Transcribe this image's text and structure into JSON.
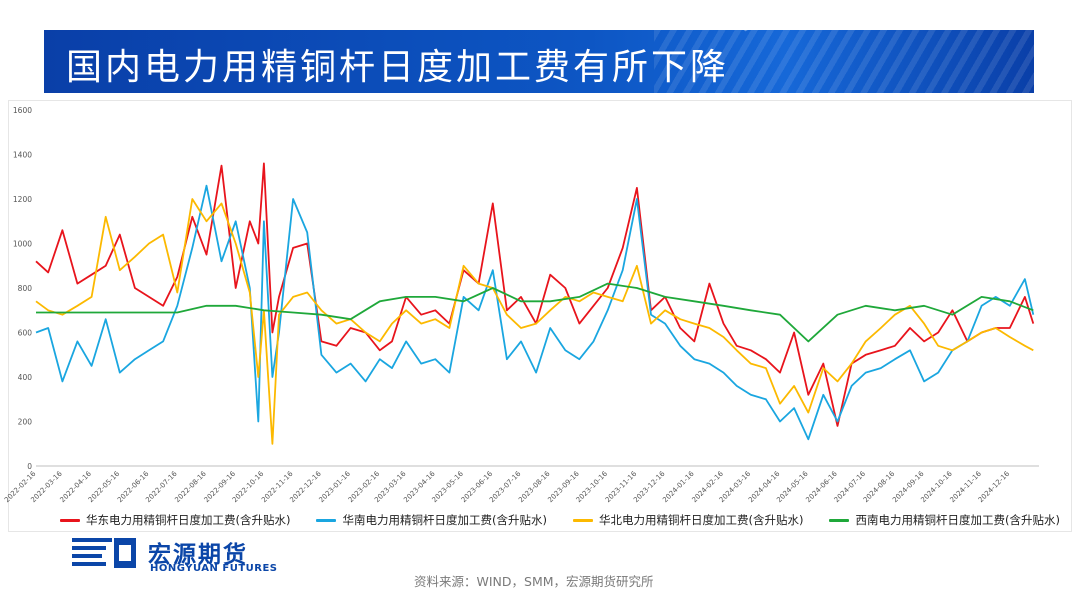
{
  "header": {
    "title": "国内电力用精铜杆日度加工费有所下降"
  },
  "footer": {
    "source": "资料来源：WIND，SMM，宏源期货研究所",
    "logo_cn": "宏源期货",
    "logo_en": "HONGYUAN FUTURES"
  },
  "colors": {
    "east": "#e8141c",
    "south": "#1aa6e0",
    "north": "#fcb900",
    "southwest": "#1fa83a",
    "banner": "#0d56c4"
  },
  "chart_data": {
    "type": "line",
    "title": "",
    "xlabel": "",
    "ylabel": "",
    "ylim": [
      0,
      1600
    ],
    "yticks": [
      0,
      200,
      400,
      600,
      800,
      1000,
      1200,
      1400,
      1600
    ],
    "xlim": [
      "2022-02-16",
      "2025-01-16"
    ],
    "xticks": [
      "2022-02-16",
      "2022-03-16",
      "2022-04-16",
      "2022-05-16",
      "2022-06-16",
      "2022-07-16",
      "2022-08-16",
      "2022-09-16",
      "2022-10-16",
      "2022-11-16",
      "2022-12-16",
      "2023-01-16",
      "2023-02-16",
      "2023-03-16",
      "2023-04-16",
      "2023-05-16",
      "2023-06-16",
      "2023-07-16",
      "2023-08-16",
      "2023-09-16",
      "2023-10-16",
      "2023-11-16",
      "2023-12-16",
      "2024-01-16",
      "2024-02-16",
      "2024-03-16",
      "2024-04-16",
      "2024-05-16",
      "2024-06-16",
      "2024-07-16",
      "2024-08-16",
      "2024-09-16",
      "2024-10-16",
      "2024-11-16",
      "2024-12-16"
    ],
    "grid": false,
    "legend": "bottom",
    "series": [
      {
        "name": "华东电力用精铜杆日度加工费(含升贴水)",
        "color": "#e8141c",
        "x": [
          "2022-02-16",
          "2022-03-01",
          "2022-03-16",
          "2022-04-01",
          "2022-04-16",
          "2022-05-01",
          "2022-05-16",
          "2022-06-01",
          "2022-06-16",
          "2022-07-01",
          "2022-07-16",
          "2022-08-01",
          "2022-08-16",
          "2022-09-01",
          "2022-09-16",
          "2022-10-01",
          "2022-10-10",
          "2022-10-16",
          "2022-10-25",
          "2022-11-01",
          "2022-11-16",
          "2022-12-01",
          "2022-12-16",
          "2023-01-01",
          "2023-01-16",
          "2023-02-01",
          "2023-02-16",
          "2023-03-01",
          "2023-03-16",
          "2023-04-01",
          "2023-04-16",
          "2023-05-01",
          "2023-05-16",
          "2023-06-01",
          "2023-06-16",
          "2023-07-01",
          "2023-07-16",
          "2023-08-01",
          "2023-08-16",
          "2023-09-01",
          "2023-09-16",
          "2023-10-01",
          "2023-10-16",
          "2023-11-01",
          "2023-11-16",
          "2023-12-01",
          "2023-12-16",
          "2024-01-01",
          "2024-01-16",
          "2024-02-01",
          "2024-02-16",
          "2024-03-01",
          "2024-03-16",
          "2024-04-01",
          "2024-04-16",
          "2024-05-01",
          "2024-05-16",
          "2024-06-01",
          "2024-06-16",
          "2024-07-01",
          "2024-07-16",
          "2024-08-01",
          "2024-08-16",
          "2024-09-01",
          "2024-09-16",
          "2024-10-01",
          "2024-10-16",
          "2024-11-01",
          "2024-11-16",
          "2024-12-01",
          "2024-12-16",
          "2025-01-01",
          "2025-01-10"
        ],
        "values": [
          920,
          870,
          1060,
          820,
          860,
          900,
          1040,
          800,
          760,
          720,
          850,
          1120,
          950,
          1350,
          800,
          1100,
          1000,
          1360,
          600,
          760,
          980,
          1000,
          560,
          540,
          620,
          600,
          520,
          560,
          760,
          680,
          700,
          640,
          880,
          820,
          1180,
          700,
          760,
          640,
          860,
          800,
          640,
          720,
          800,
          980,
          1250,
          700,
          760,
          620,
          560,
          820,
          640,
          540,
          520,
          480,
          420,
          600,
          320,
          460,
          180,
          460,
          500,
          520,
          540,
          620,
          560,
          600,
          700,
          560,
          600,
          620,
          620,
          760,
          640
        ]
      },
      {
        "name": "华南电力用精铜杆日度加工费(含升贴水)",
        "color": "#1aa6e0",
        "x": [
          "2022-02-16",
          "2022-03-01",
          "2022-03-16",
          "2022-04-01",
          "2022-04-16",
          "2022-05-01",
          "2022-05-16",
          "2022-06-01",
          "2022-06-16",
          "2022-07-01",
          "2022-07-16",
          "2022-08-01",
          "2022-08-16",
          "2022-09-01",
          "2022-09-16",
          "2022-10-01",
          "2022-10-10",
          "2022-10-16",
          "2022-10-25",
          "2022-11-01",
          "2022-11-16",
          "2022-12-01",
          "2022-12-16",
          "2023-01-01",
          "2023-01-16",
          "2023-02-01",
          "2023-02-16",
          "2023-03-01",
          "2023-03-16",
          "2023-04-01",
          "2023-04-16",
          "2023-05-01",
          "2023-05-16",
          "2023-06-01",
          "2023-06-16",
          "2023-07-01",
          "2023-07-16",
          "2023-08-01",
          "2023-08-16",
          "2023-09-01",
          "2023-09-16",
          "2023-10-01",
          "2023-10-16",
          "2023-11-01",
          "2023-11-16",
          "2023-12-01",
          "2023-12-16",
          "2024-01-01",
          "2024-01-16",
          "2024-02-01",
          "2024-02-16",
          "2024-03-01",
          "2024-03-16",
          "2024-04-01",
          "2024-04-16",
          "2024-05-01",
          "2024-05-16",
          "2024-06-01",
          "2024-06-16",
          "2024-07-01",
          "2024-07-16",
          "2024-08-01",
          "2024-08-16",
          "2024-09-01",
          "2024-09-16",
          "2024-10-01",
          "2024-10-16",
          "2024-11-01",
          "2024-11-16",
          "2024-12-01",
          "2024-12-16",
          "2025-01-01",
          "2025-01-10"
        ],
        "values": [
          600,
          620,
          380,
          560,
          450,
          660,
          420,
          480,
          520,
          560,
          720,
          980,
          1260,
          920,
          1100,
          800,
          200,
          1100,
          400,
          600,
          1200,
          1050,
          500,
          420,
          460,
          380,
          480,
          440,
          560,
          460,
          480,
          420,
          760,
          700,
          880,
          480,
          560,
          420,
          620,
          520,
          480,
          560,
          700,
          880,
          1200,
          680,
          640,
          540,
          480,
          460,
          420,
          360,
          320,
          300,
          200,
          260,
          120,
          320,
          200,
          360,
          420,
          440,
          480,
          520,
          380,
          420,
          520,
          560,
          720,
          760,
          720,
          840,
          680
        ]
      },
      {
        "name": "华北电力用精铜杆日度加工费(含升贴水)",
        "color": "#fcb900",
        "x": [
          "2022-02-16",
          "2022-03-01",
          "2022-03-16",
          "2022-04-01",
          "2022-04-16",
          "2022-05-01",
          "2022-05-16",
          "2022-06-01",
          "2022-06-16",
          "2022-07-01",
          "2022-07-16",
          "2022-08-01",
          "2022-08-16",
          "2022-09-01",
          "2022-09-16",
          "2022-10-01",
          "2022-10-10",
          "2022-10-16",
          "2022-10-25",
          "2022-11-01",
          "2022-11-16",
          "2022-12-01",
          "2022-12-16",
          "2023-01-01",
          "2023-01-16",
          "2023-02-01",
          "2023-02-16",
          "2023-03-01",
          "2023-03-16",
          "2023-04-01",
          "2023-04-16",
          "2023-05-01",
          "2023-05-16",
          "2023-06-01",
          "2023-06-16",
          "2023-07-01",
          "2023-07-16",
          "2023-08-01",
          "2023-08-16",
          "2023-09-01",
          "2023-09-16",
          "2023-10-01",
          "2023-10-16",
          "2023-11-01",
          "2023-11-16",
          "2023-12-01",
          "2023-12-16",
          "2024-01-01",
          "2024-01-16",
          "2024-02-01",
          "2024-02-16",
          "2024-03-01",
          "2024-03-16",
          "2024-04-01",
          "2024-04-16",
          "2024-05-01",
          "2024-05-16",
          "2024-06-01",
          "2024-06-16",
          "2024-07-01",
          "2024-07-16",
          "2024-08-01",
          "2024-08-16",
          "2024-09-01",
          "2024-09-16",
          "2024-10-01",
          "2024-10-16",
          "2024-11-01",
          "2024-11-16",
          "2024-12-01",
          "2024-12-16",
          "2025-01-01",
          "2025-01-10"
        ],
        "values": [
          740,
          700,
          680,
          720,
          760,
          1120,
          880,
          940,
          1000,
          1040,
          780,
          1200,
          1100,
          1180,
          1000,
          780,
          400,
          700,
          100,
          680,
          760,
          780,
          700,
          640,
          660,
          600,
          560,
          640,
          700,
          640,
          660,
          620,
          900,
          820,
          800,
          680,
          620,
          640,
          700,
          760,
          740,
          780,
          760,
          740,
          900,
          640,
          700,
          660,
          640,
          620,
          580,
          520,
          460,
          440,
          280,
          360,
          240,
          440,
          380,
          460,
          560,
          620,
          680,
          720,
          640,
          540,
          520,
          560,
          600,
          620,
          580,
          540,
          520
        ]
      },
      {
        "name": "西南电力用精铜杆日度加工费(含升贴水)",
        "color": "#1fa83a",
        "x": [
          "2022-02-16",
          "2022-03-16",
          "2022-04-16",
          "2022-05-16",
          "2022-06-16",
          "2022-07-16",
          "2022-08-16",
          "2022-09-16",
          "2022-10-16",
          "2022-11-16",
          "2022-12-16",
          "2023-01-16",
          "2023-02-16",
          "2023-03-16",
          "2023-04-16",
          "2023-05-16",
          "2023-06-16",
          "2023-07-16",
          "2023-08-16",
          "2023-09-16",
          "2023-10-16",
          "2023-11-16",
          "2023-12-16",
          "2024-01-16",
          "2024-02-16",
          "2024-03-16",
          "2024-04-16",
          "2024-05-16",
          "2024-06-16",
          "2024-07-16",
          "2024-08-16",
          "2024-09-16",
          "2024-10-16",
          "2024-11-16",
          "2024-12-16",
          "2025-01-10"
        ],
        "values": [
          690,
          690,
          690,
          690,
          690,
          690,
          720,
          720,
          700,
          690,
          680,
          660,
          740,
          760,
          760,
          740,
          800,
          740,
          740,
          760,
          820,
          800,
          760,
          740,
          720,
          700,
          680,
          560,
          680,
          720,
          700,
          720,
          680,
          760,
          740,
          700
        ]
      }
    ]
  }
}
